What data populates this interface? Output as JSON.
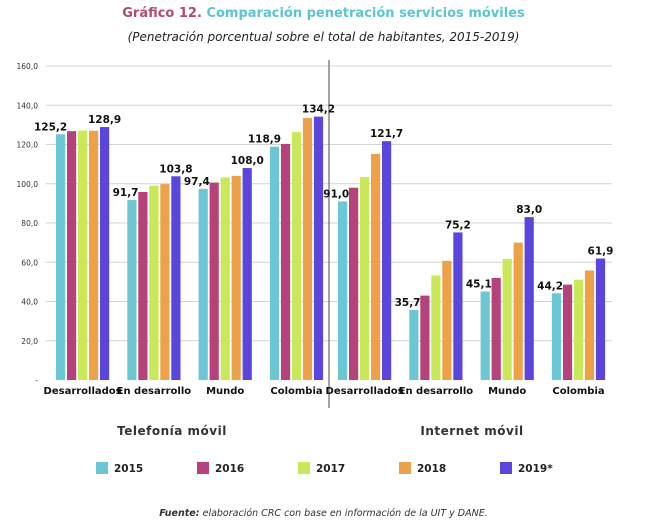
{
  "title_lead": "Gráfico  12.",
  "title_rest": "Comparación penetración servicios móviles",
  "subtitle": "(Penetración porcentual sobre el total de habitantes, 2015-2019)",
  "source_label": "Fuente:",
  "source_text": "elaboración CRC con base en información de la UIT y DANE.",
  "colors": {
    "2015": "#6cc7d4",
    "2016": "#b5427a",
    "2017": "#c9e85a",
    "2018": "#eda24a",
    "2019*": "#5a46dd"
  },
  "chart_data": {
    "type": "bar",
    "ylim": [
      0,
      160
    ],
    "yticks": [
      "-",
      "20,0",
      "40,0",
      "60,0",
      "80,0",
      "100,0",
      "120,0",
      "140,0",
      "160,0"
    ],
    "grid": true,
    "legend_position": "bottom",
    "series_names": [
      "2015",
      "2016",
      "2017",
      "2018",
      "2019*"
    ],
    "panels": [
      {
        "name": "Telefonía móvil",
        "categories": [
          "Desarrollados",
          "En desarrollo",
          "Mundo",
          "Colombia"
        ],
        "values": [
          [
            125.2,
            126.8,
            127.1,
            127.0,
            128.9
          ],
          [
            91.7,
            95.8,
            99.0,
            99.8,
            103.8
          ],
          [
            97.4,
            100.6,
            103.2,
            104.0,
            108.0
          ],
          [
            118.9,
            120.3,
            126.3,
            133.5,
            134.2
          ]
        ],
        "labels": [
          [
            "125,2",
            "",
            "",
            "",
            "128,9"
          ],
          [
            "91,7",
            "",
            "",
            "",
            "103,8"
          ],
          [
            "97,4",
            "",
            "",
            "",
            "108,0"
          ],
          [
            "118,9",
            "",
            "",
            "",
            "134,2"
          ]
        ]
      },
      {
        "name": "Internet móvil",
        "categories": [
          "Desarrollados",
          "En desarrollo",
          "Mundo",
          "Colombia"
        ],
        "values": [
          [
            91.0,
            98.0,
            103.4,
            115.2,
            121.7
          ],
          [
            35.7,
            43.0,
            53.3,
            60.7,
            75.2
          ],
          [
            45.1,
            52.0,
            61.6,
            70.0,
            83.0
          ],
          [
            44.2,
            48.6,
            51.1,
            55.8,
            61.9
          ]
        ],
        "labels": [
          [
            "91,0",
            "",
            "",
            "",
            "121,7"
          ],
          [
            "35,7",
            "",
            "",
            "",
            "75,2"
          ],
          [
            "45,1",
            "",
            "",
            "",
            "83,0"
          ],
          [
            "44,2",
            "",
            "",
            "",
            "61,9"
          ]
        ]
      }
    ]
  }
}
